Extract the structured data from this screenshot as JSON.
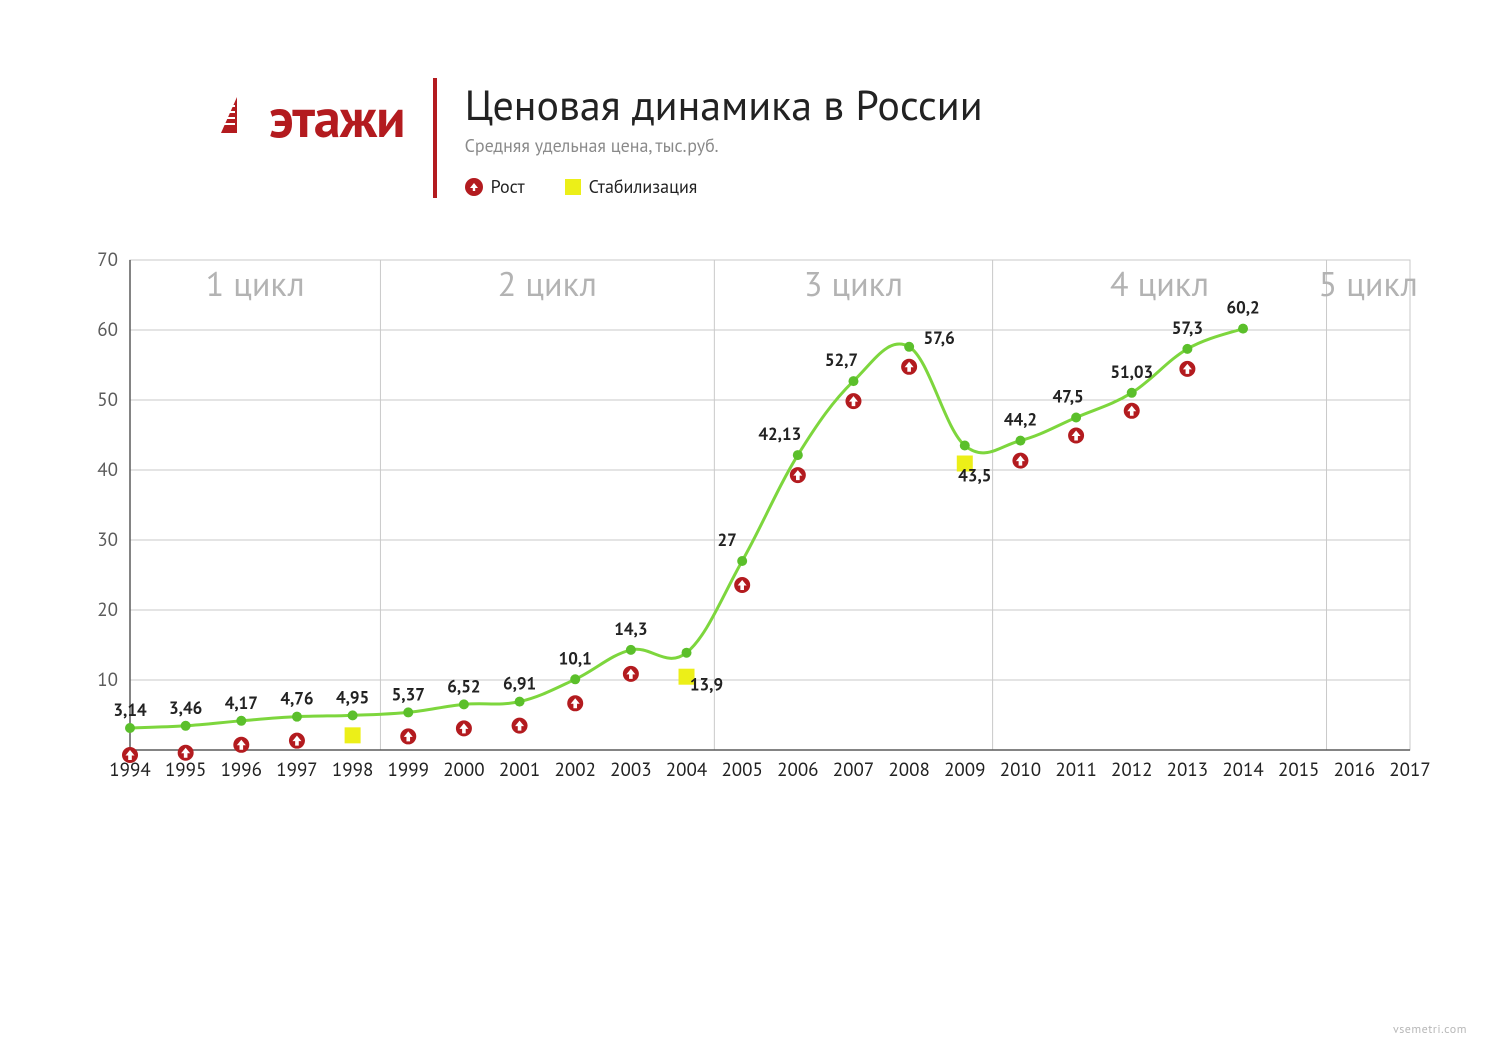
{
  "brand": {
    "name": "этажи",
    "color": "#b31b1f"
  },
  "header": {
    "title": "Ценовая динамика в России",
    "subtitle": "Средняя удельная цена, тыс.руб."
  },
  "legend": {
    "growth": "Рост",
    "stabilization": "Стабилизация"
  },
  "watermark": "vsemetri.com",
  "chart": {
    "type": "line",
    "line_color": "#7dd63d",
    "line_width": 3,
    "point_color": "#5bbf2b",
    "point_radius": 5,
    "growth_marker_color": "#b31b1f",
    "stabilization_marker_color": "#ecef18",
    "marker_radius": 8,
    "background_color": "#ffffff",
    "grid_color": "#c9c9c9",
    "axis_color": "#5b5b5b",
    "ytick_color": "#5b5b5b",
    "xtick_color": "#222222",
    "cycle_label_color": "#b3b3b3",
    "cycle_label_fontsize": 34,
    "label_fontsize": 17,
    "tick_fontsize": 19,
    "ylim": [
      0,
      70
    ],
    "ytick_step": 10,
    "yticks": [
      10,
      20,
      30,
      40,
      50,
      60,
      70
    ],
    "xticks": [
      1994,
      1995,
      1996,
      1997,
      1998,
      1999,
      2000,
      2001,
      2002,
      2003,
      2004,
      2005,
      2006,
      2007,
      2008,
      2009,
      2010,
      2011,
      2012,
      2013,
      2014,
      2015,
      2016,
      2017
    ],
    "cycles": [
      {
        "label": "1 цикл",
        "from": 1994,
        "to": 1998
      },
      {
        "label": "2 цикл",
        "from": 1998,
        "to": 2004
      },
      {
        "label": "3 цикл",
        "from": 2004,
        "to": 2009
      },
      {
        "label": "4 цикл",
        "from": 2009,
        "to": 2015
      },
      {
        "label": "5 цикл",
        "from": 2015,
        "to": 2017
      }
    ],
    "cycle_boundaries": [
      1998,
      2004,
      2009,
      2015
    ],
    "series": [
      {
        "year": 1994,
        "value": 3.14,
        "label": "3,14",
        "marker": "growth",
        "marker_dy": 27,
        "label_dy": -12
      },
      {
        "year": 1995,
        "value": 3.46,
        "label": "3,46",
        "marker": "growth",
        "marker_dy": 27,
        "label_dy": -12
      },
      {
        "year": 1996,
        "value": 4.17,
        "label": "4,17",
        "marker": "growth",
        "marker_dy": 24,
        "label_dy": -12
      },
      {
        "year": 1997,
        "value": 4.76,
        "label": "4,76",
        "marker": "growth",
        "marker_dy": 24,
        "label_dy": -12
      },
      {
        "year": 1998,
        "value": 4.95,
        "label": "4,95",
        "marker": "stabilization",
        "marker_dy": 20,
        "label_dy": -12
      },
      {
        "year": 1999,
        "value": 5.37,
        "label": "5,37",
        "marker": "growth",
        "marker_dy": 24,
        "label_dy": -12
      },
      {
        "year": 2000,
        "value": 6.52,
        "label": "6,52",
        "marker": "growth",
        "marker_dy": 24,
        "label_dy": -12
      },
      {
        "year": 2001,
        "value": 6.91,
        "label": "6,91",
        "marker": "growth",
        "marker_dy": 24,
        "label_dy": -12
      },
      {
        "year": 2002,
        "value": 10.1,
        "label": "10,1",
        "marker": "growth",
        "marker_dy": 24,
        "label_dy": -15
      },
      {
        "year": 2003,
        "value": 14.3,
        "label": "14,3",
        "marker": "growth",
        "marker_dy": 24,
        "label_dy": -15
      },
      {
        "year": 2004,
        "value": 13.9,
        "label": "13,9",
        "marker": "stabilization",
        "marker_dy": 24,
        "label_dy": 38,
        "label_dx": 20
      },
      {
        "year": 2005,
        "value": 27.0,
        "label": "27",
        "marker": "growth",
        "marker_dy": 24,
        "label_dy": -15,
        "label_dx": -15
      },
      {
        "year": 2006,
        "value": 42.13,
        "label": "42,13",
        "marker": "growth",
        "marker_dy": 20,
        "label_dy": -15,
        "label_dx": -18
      },
      {
        "year": 2007,
        "value": 52.7,
        "label": "52,7",
        "marker": "growth",
        "marker_dy": 20,
        "label_dy": -15,
        "label_dx": -12
      },
      {
        "year": 2008,
        "value": 57.6,
        "label": "57,6",
        "marker": "growth",
        "marker_dy": 20,
        "label_dy": -3,
        "label_dx": 30
      },
      {
        "year": 2009,
        "value": 43.5,
        "label": "43,5",
        "marker": "stabilization",
        "marker_dy": 18,
        "label_dy": 36,
        "label_dx": 10
      },
      {
        "year": 2010,
        "value": 44.2,
        "label": "44,2",
        "marker": "growth",
        "marker_dy": 20,
        "label_dy": -15
      },
      {
        "year": 2011,
        "value": 47.5,
        "label": "47,5",
        "marker": "growth",
        "marker_dy": 18,
        "label_dy": -15,
        "label_dx": -8
      },
      {
        "year": 2012,
        "value": 51.03,
        "label": "51,03",
        "marker": "growth",
        "marker_dy": 18,
        "label_dy": -15
      },
      {
        "year": 2013,
        "value": 57.3,
        "label": "57,3",
        "marker": "growth",
        "marker_dy": 20,
        "label_dy": -15
      },
      {
        "year": 2014,
        "value": 60.2,
        "label": "60,2",
        "marker": null,
        "label_dy": -15
      }
    ]
  }
}
